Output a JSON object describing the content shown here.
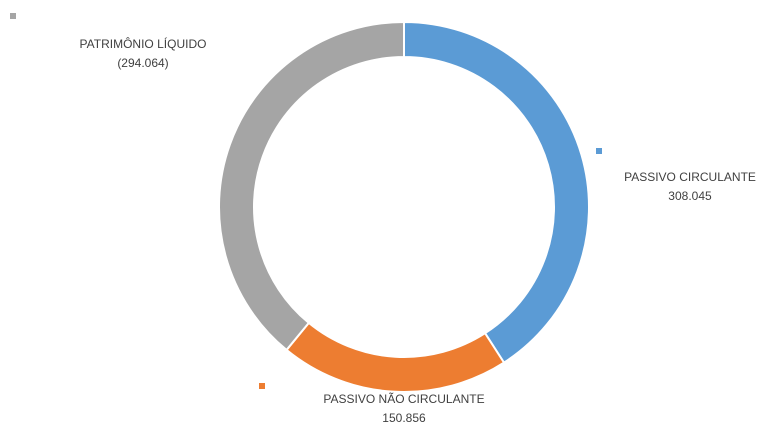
{
  "chart_data": {
    "type": "donut",
    "categories": [
      "PASSIVO CIRCULANTE",
      "PASSIVO NÃO CIRCULANTE",
      "PATRIMÔNIO LÍQUIDO"
    ],
    "values": [
      308045,
      150856,
      294064
    ],
    "value_labels": [
      "308.045",
      "150.856",
      "(294.064)"
    ],
    "colors": [
      "#5b9bd5",
      "#ed7d31",
      "#a5a5a5"
    ]
  }
}
